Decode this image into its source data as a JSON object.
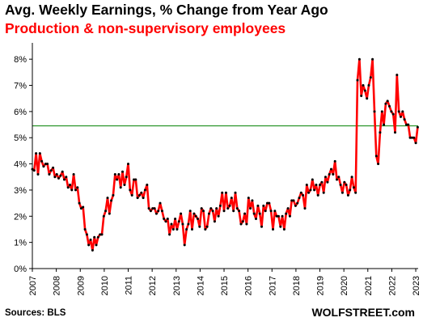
{
  "title": "Avg. Weekly Earnings, % Change from Year Ago",
  "subtitle": "Production & non-supervisory  employees",
  "source": "Sources: BLS",
  "brand": "WOLFSTREET.com",
  "colors": {
    "line": "#ff0000",
    "marker": "#000000",
    "reference_line": "#008000",
    "axis": "#000000"
  },
  "chart_data": {
    "type": "line",
    "title": "Avg. Weekly Earnings, % Change from Year Ago",
    "subtitle": "Production & non-supervisory  employees",
    "xlabel": "",
    "ylabel": "",
    "xlim": [
      2007,
      2023.1
    ],
    "ylim": [
      0,
      8.5
    ],
    "x_ticks": [
      "2007",
      "2008",
      "2009",
      "2010",
      "2011",
      "2012",
      "2013",
      "2014",
      "2015",
      "2016",
      "2017",
      "2018",
      "2019",
      "2020",
      "2021",
      "2022",
      "2023"
    ],
    "y_ticks": [
      "0%",
      "1%",
      "2%",
      "3%",
      "4%",
      "5%",
      "6%",
      "7%",
      "8%"
    ],
    "y_tick_values": [
      0,
      1,
      2,
      3,
      4,
      5,
      6,
      7,
      8
    ],
    "grid": false,
    "legend": "none",
    "reference_line": {
      "y": 5.45,
      "color": "#008000"
    },
    "series": [
      {
        "values": [
          3.8,
          3.75,
          4.4,
          3.6,
          4.4,
          4.1,
          3.9,
          4.0,
          4.0,
          3.6,
          3.75,
          3.85,
          3.5,
          3.6,
          3.45,
          3.55,
          3.7,
          3.4,
          3.5,
          3.1,
          3.2,
          3.0,
          3.6,
          3.0,
          3.1,
          2.5,
          2.3,
          2.35,
          1.5,
          1.3,
          0.9,
          1.1,
          0.7,
          1.2,
          0.9,
          1.2,
          1.3,
          1.3,
          2.0,
          2.2,
          2.7,
          2.1,
          2.6,
          2.8,
          3.6,
          3.4,
          3.6,
          3.1,
          3.7,
          3.2,
          3.5,
          4.0,
          3.0,
          2.8,
          3.4,
          3.4,
          2.7,
          2.8,
          2.9,
          2.7,
          3.0,
          3.2,
          2.3,
          2.2,
          2.3,
          2.3,
          2.1,
          2.2,
          2.5,
          2.2,
          1.9,
          1.8,
          1.9,
          1.3,
          1.7,
          1.5,
          1.9,
          1.5,
          1.8,
          2.1,
          1.7,
          0.9,
          1.5,
          1.7,
          2.2,
          1.5,
          2.1,
          2.0,
          1.9,
          1.6,
          2.3,
          2.2,
          1.5,
          1.6,
          2.1,
          2.3,
          2.2,
          1.8,
          2.3,
          2.0,
          2.4,
          2.9,
          2.2,
          2.9,
          2.3,
          2.4,
          2.7,
          2.2,
          2.9,
          2.3,
          2.2,
          1.7,
          1.8,
          2.1,
          1.7,
          2.7,
          2.3,
          2.6,
          2.1,
          1.9,
          2.4,
          2.1,
          1.6,
          2.4,
          2.2,
          2.5,
          2.5,
          2.2,
          1.5,
          2.2,
          2.0,
          2.0,
          1.6,
          2.0,
          1.5,
          2.1,
          2.3,
          2.0,
          2.6,
          2.6,
          2.4,
          2.5,
          2.7,
          2.9,
          2.8,
          2.3,
          3.2,
          2.9,
          3.0,
          3.4,
          3.0,
          3.2,
          2.8,
          3.2,
          3.3,
          2.9,
          3.5,
          3.3,
          3.6,
          3.8,
          3.6,
          4.1,
          3.4,
          3.5,
          3.2,
          2.9,
          3.3,
          3.2,
          2.8,
          3.0,
          3.5,
          3.1,
          2.9,
          7.2,
          8.0,
          6.6,
          7.0,
          6.8,
          6.5,
          7.0,
          7.3,
          8.0,
          6.0,
          4.3,
          4.0,
          5.2,
          6.0,
          5.5,
          6.3,
          6.4,
          6.2,
          6.0,
          5.9,
          5.2,
          7.4,
          6.0,
          5.8,
          6.0,
          5.7,
          5.5,
          5.5,
          5.0,
          5.0,
          5.0,
          4.8,
          5.4
        ]
      }
    ]
  }
}
